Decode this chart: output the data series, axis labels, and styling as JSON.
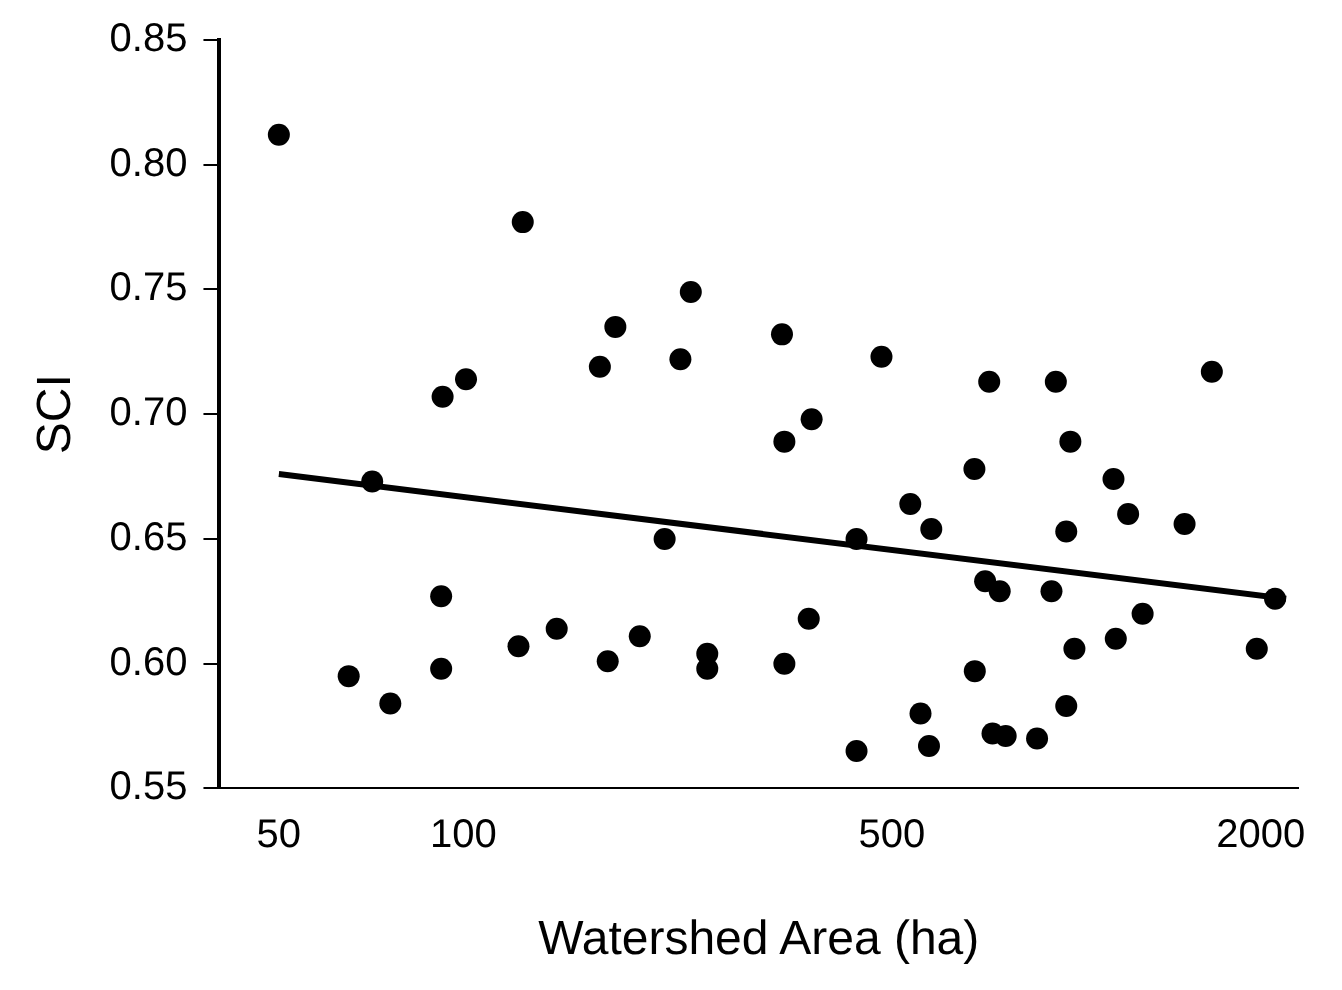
{
  "chart_data": {
    "type": "scatter",
    "xlabel": "Watershed Area (ha)",
    "ylabel": "SCI",
    "log": "x",
    "xlim": [
      40,
      2300
    ],
    "xticks": [
      50,
      100,
      500,
      2000
    ],
    "ylim": [
      0.55,
      0.85
    ],
    "yticks": [
      0.55,
      {
        "value": 0.6,
        "label": "0.60"
      },
      0.65,
      {
        "value": 0.7,
        "label": "0.70"
      },
      0.75,
      {
        "value": 0.8,
        "label": "0.80"
      },
      0.85
    ],
    "grid": false,
    "legend": false,
    "marker": "circle",
    "series": [
      {
        "type": "scatter",
        "color": "#000000",
        "x": [
          50,
          65,
          76,
          71,
          92.5,
          101,
          92,
          92,
          125,
          123,
          142,
          177,
          167,
          172,
          194,
          213,
          235,
          226,
          250,
          250,
          331,
          370,
          334,
          481,
          721,
          926,
          1664,
          978,
          682,
          1150,
          536,
          580,
          1215,
          1502,
          963,
          438,
          710,
          750,
          911,
          2110,
          1283,
          1160,
          1970,
          993,
          366,
          334,
          683,
          557,
          963,
          438,
          575,
          730,
          767,
          863
        ],
        "values": [
          0.812,
          0.595,
          0.584,
          0.673,
          0.707,
          0.714,
          0.627,
          0.598,
          0.777,
          0.607,
          0.614,
          0.735,
          0.719,
          0.601,
          0.611,
          0.65,
          0.749,
          0.722,
          0.604,
          0.598,
          0.732,
          0.698,
          0.689,
          0.723,
          0.713,
          0.713,
          0.717,
          0.689,
          0.678,
          0.674,
          0.664,
          0.654,
          0.66,
          0.656,
          0.653,
          0.65,
          0.633,
          0.629,
          0.629,
          0.626,
          0.62,
          0.61,
          0.606,
          0.606,
          0.618,
          0.6,
          0.597,
          0.58,
          0.583,
          0.565,
          0.567,
          0.572,
          0.571,
          0.57
        ]
      },
      {
        "type": "line",
        "color": "#000000",
        "line_style": "solid",
        "marker": "none",
        "x": [
          50,
          2200
        ],
        "values": [
          0.676,
          0.626
        ]
      }
    ]
  }
}
